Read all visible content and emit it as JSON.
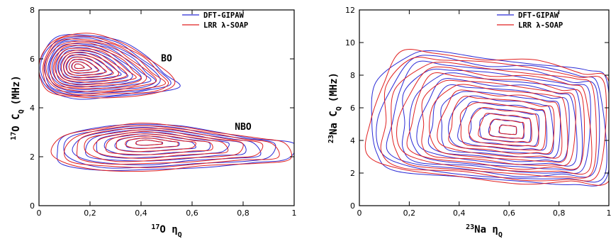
{
  "colors": {
    "dft": "#2b2bd6",
    "lrr": "#e02020",
    "axis": "#000000"
  },
  "chart_data": [
    {
      "type": "contour",
      "x_label": {
        "sup": "17",
        "main": "O η",
        "sub": "Q"
      },
      "y_label": {
        "sup": "17",
        "main": "O C",
        "sub": "Q",
        "unit": "(MHz)"
      },
      "xlim": [
        0,
        1
      ],
      "ylim": [
        0,
        8
      ],
      "x_ticks": [
        "0",
        "0,2",
        "0,4",
        "0,6",
        "0,8",
        "1"
      ],
      "y_ticks": [
        "0",
        "2",
        "4",
        "6",
        "8"
      ],
      "legend": {
        "position": "top-right",
        "entries": [
          {
            "name": "DFT-GIPAW",
            "color": "#2b2bd6"
          },
          {
            "name": "LRR λ-SOAP",
            "color": "#e02020"
          }
        ]
      },
      "annotations": [
        {
          "text": "BO",
          "x": 0.5,
          "y": 5.9
        },
        {
          "text": "NBO",
          "x": 0.8,
          "y": 3.1
        }
      ],
      "clusters": [
        {
          "name": "BO",
          "center": [
            0.15,
            5.7
          ],
          "outer_points": [
            [
              0.02,
              6.3
            ],
            [
              0.08,
              6.9
            ],
            [
              0.2,
              7.0
            ],
            [
              0.32,
              6.7
            ],
            [
              0.42,
              6.1
            ],
            [
              0.5,
              5.4
            ],
            [
              0.54,
              4.9
            ],
            [
              0.45,
              4.6
            ],
            [
              0.3,
              4.45
            ],
            [
              0.15,
              4.4
            ],
            [
              0.04,
              4.7
            ],
            [
              0.0,
              5.5
            ]
          ],
          "levels": 14
        },
        {
          "name": "NBO",
          "center": [
            0.42,
            2.6
          ],
          "outer_points": [
            [
              0.1,
              2.85
            ],
            [
              0.25,
              3.2
            ],
            [
              0.4,
              3.35
            ],
            [
              0.55,
              3.25
            ],
            [
              0.7,
              3.0
            ],
            [
              0.85,
              2.75
            ],
            [
              0.98,
              2.55
            ],
            [
              0.98,
              1.9
            ],
            [
              0.85,
              1.75
            ],
            [
              0.65,
              1.6
            ],
            [
              0.45,
              1.45
            ],
            [
              0.25,
              1.45
            ],
            [
              0.1,
              1.7
            ],
            [
              0.06,
              2.2
            ]
          ],
          "levels": 9
        }
      ]
    },
    {
      "type": "contour",
      "x_label": {
        "sup": "23",
        "main": "Na η",
        "sub": "Q"
      },
      "y_label": {
        "sup": "23",
        "main": "Na C",
        "sub": "Q",
        "unit": "(MHz)"
      },
      "xlim": [
        0,
        1
      ],
      "ylim": [
        0,
        12
      ],
      "x_ticks": [
        "0",
        "0,2",
        "0,4",
        "0,6",
        "0,8",
        "1"
      ],
      "y_ticks": [
        "0",
        "2",
        "4",
        "6",
        "8",
        "10",
        "12"
      ],
      "legend": {
        "position": "top-right",
        "entries": [
          {
            "name": "DFT-GIPAW",
            "color": "#2b2bd6"
          },
          {
            "name": "LRR λ-SOAP",
            "color": "#e02020"
          }
        ]
      },
      "annotations": [],
      "clusters": [
        {
          "name": "Na",
          "center": [
            0.6,
            4.6
          ],
          "outer_points": [
            [
              0.05,
              5.2
            ],
            [
              0.08,
              7.5
            ],
            [
              0.18,
              9.3
            ],
            [
              0.3,
              9.4
            ],
            [
              0.5,
              9.0
            ],
            [
              0.7,
              8.8
            ],
            [
              0.9,
              8.2
            ],
            [
              1.0,
              7.5
            ],
            [
              1.0,
              1.8
            ],
            [
              0.85,
              1.4
            ],
            [
              0.65,
              1.4
            ],
            [
              0.4,
              1.8
            ],
            [
              0.15,
              2.2
            ],
            [
              0.05,
              3.2
            ]
          ],
          "levels": 14
        }
      ]
    }
  ]
}
